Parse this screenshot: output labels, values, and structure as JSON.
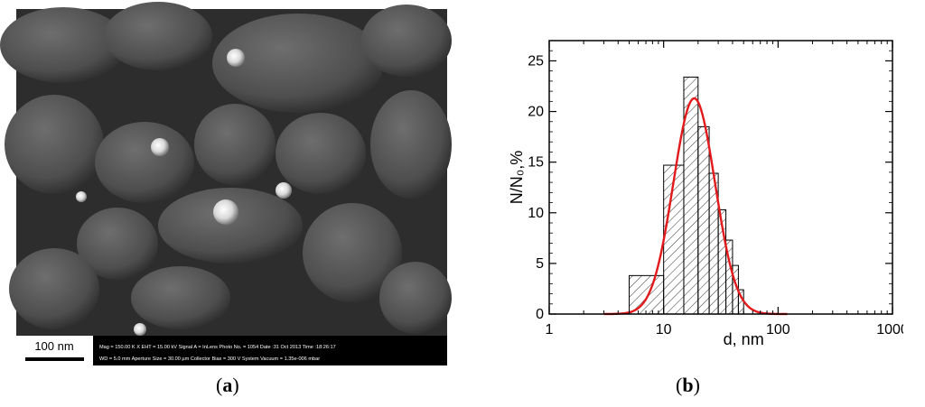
{
  "panels": {
    "a_label": "a",
    "b_label": "b"
  },
  "sem": {
    "scale_bar_label": "100 nm",
    "info_line1": "Mag = 150.00 K X   EHT = 15.00 kV  Signal A = InLens   Photo No. = 1054  Date :31 Oct 2013   Time :18:26:17",
    "info_line2": "WD = 5.0 mm          Aperture Size = 30.00 µm     Collector Bias =   300 V  System Vacuum = 1.35e-006 mbar"
  },
  "chart_data": {
    "type": "bar",
    "xlabel": "d, nm",
    "ylabel": "N/N₀,%",
    "xscale": "log",
    "xlim": [
      1,
      1000
    ],
    "ylim": [
      0,
      27
    ],
    "xticks": [
      1,
      10,
      100,
      1000
    ],
    "xtick_labels": [
      "1",
      "10",
      "100",
      "1000"
    ],
    "yticks": [
      0,
      5,
      10,
      15,
      20,
      25
    ],
    "ytick_labels": [
      "0",
      "5",
      "10",
      "15",
      "20",
      "25"
    ],
    "bins": [
      {
        "left": 5,
        "right": 10,
        "value": 3.8
      },
      {
        "left": 10,
        "right": 15,
        "value": 14.7
      },
      {
        "left": 15,
        "right": 20,
        "value": 23.4
      },
      {
        "left": 20,
        "right": 25,
        "value": 18.5
      },
      {
        "left": 25,
        "right": 30,
        "value": 13.9
      },
      {
        "left": 30,
        "right": 35,
        "value": 10.3
      },
      {
        "left": 35,
        "right": 40,
        "value": 7.3
      },
      {
        "left": 40,
        "right": 45,
        "value": 4.8
      },
      {
        "left": 45,
        "right": 50,
        "value": 2.4
      }
    ],
    "fit": {
      "type": "lognormal",
      "peak_x": 18.5,
      "peak_y": 21.3,
      "color": "#e31a1c"
    },
    "hatch": "diagonal",
    "grid": false
  }
}
